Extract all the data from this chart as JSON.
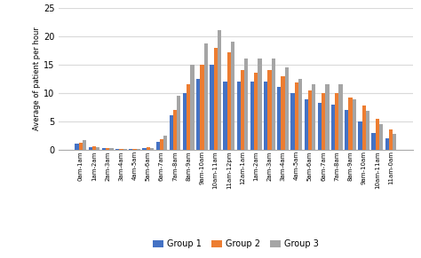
{
  "categories": [
    "0am-1am",
    "1am-2am",
    "2am-3am",
    "3am-4am",
    "4am-5am",
    "5am-6am",
    "6am-7am",
    "7am-8am",
    "8am-9am",
    "9am-10am",
    "10am-11am",
    "11am-12pm",
    "12am-1am",
    "1am-2am",
    "2am-3am",
    "3am-4am",
    "4am-5am",
    "5am-6am",
    "6am-7am",
    "7am-8am",
    "8am-9am",
    "9am-10am",
    "10am-11am",
    "11am-0am"
  ],
  "group1": [
    1.0,
    0.5,
    0.2,
    0.15,
    0.15,
    0.2,
    1.3,
    6.0,
    10.0,
    12.5,
    15.0,
    12.0,
    12.0,
    12.0,
    12.0,
    11.0,
    10.0,
    8.8,
    8.2,
    8.0,
    7.0,
    5.0,
    3.0,
    2.0
  ],
  "group2": [
    1.2,
    0.6,
    0.2,
    0.15,
    0.15,
    0.5,
    1.8,
    7.0,
    11.5,
    15.0,
    18.0,
    17.2,
    14.0,
    13.5,
    14.0,
    13.0,
    11.8,
    10.5,
    10.0,
    10.0,
    9.2,
    7.8,
    5.5,
    3.5
  ],
  "group3": [
    1.7,
    0.5,
    0.2,
    0.15,
    0.15,
    0.2,
    2.5,
    9.5,
    15.0,
    18.7,
    21.0,
    19.0,
    16.0,
    16.0,
    16.0,
    14.5,
    12.5,
    11.5,
    11.5,
    11.5,
    8.8,
    6.8,
    4.5,
    2.8
  ],
  "colors": [
    "#4472C4",
    "#ED7D31",
    "#A5A5A5"
  ],
  "ylabel": "Average of patient per hour",
  "ylim": [
    0,
    25
  ],
  "yticks": [
    0,
    5,
    10,
    15,
    20,
    25
  ],
  "legend_labels": [
    "Group 1",
    "Group 2",
    "Group 3"
  ],
  "background_color": "#FFFFFF",
  "grid_color": "#D9D9D9"
}
